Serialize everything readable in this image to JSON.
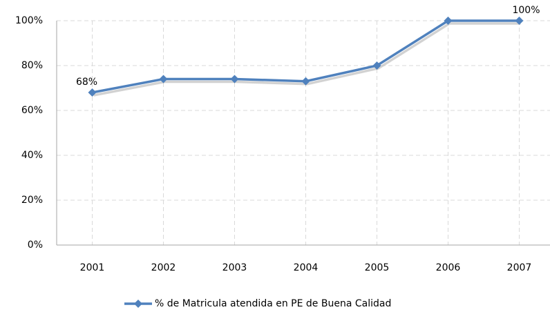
{
  "chart_data": {
    "type": "line",
    "categories": [
      "2001",
      "2002",
      "2003",
      "2004",
      "2005",
      "2006",
      "2007"
    ],
    "series": [
      {
        "name": "% de Matricula atendida en PE de Buena Calidad",
        "color": "#4f81bd",
        "values": [
          68,
          74,
          74,
          73,
          80,
          100,
          100
        ],
        "value_labels": [
          "68%",
          null,
          null,
          null,
          null,
          null,
          "100%"
        ]
      }
    ],
    "ylim": [
      0,
      100
    ],
    "yticks": [
      {
        "value": 0,
        "label": "0%"
      },
      {
        "value": 20,
        "label": "20%"
      },
      {
        "value": 40,
        "label": "40%"
      },
      {
        "value": 60,
        "label": "60%"
      },
      {
        "value": 80,
        "label": "80%"
      },
      {
        "value": 100,
        "label": "100%"
      }
    ],
    "grid": true,
    "legend": "bottom"
  }
}
